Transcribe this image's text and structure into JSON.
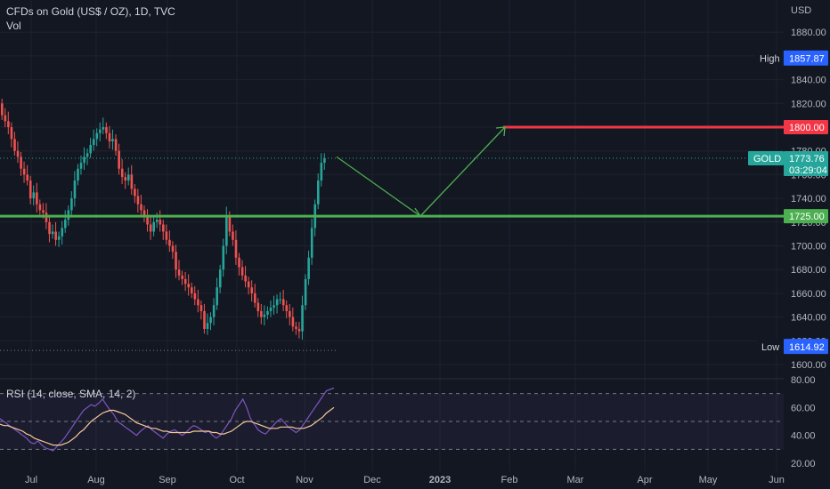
{
  "header": {
    "symbol_line": "CFDs on Gold (US$ / OZ), 1D, TVC",
    "sub_line": "Vol"
  },
  "axis": {
    "currency": "USD",
    "price_ticks": [
      1880,
      1860,
      1840,
      1820,
      1800,
      1780,
      1760,
      1740,
      1720,
      1700,
      1680,
      1660,
      1640,
      1620,
      1600
    ],
    "price_tick_labels": [
      "1880.00",
      "1860.00",
      "1840.00",
      "1820.00",
      "1800.00",
      "1780.00",
      "1760.00",
      "1740.00",
      "1720.00",
      "1700.00",
      "1680.00",
      "1660.00",
      "1640.00",
      "1620.00",
      "1600.00"
    ],
    "time_labels": [
      "Jul",
      "Aug",
      "Sep",
      "Oct",
      "Nov",
      "Dec",
      "2023",
      "Feb",
      "Mar",
      "Apr",
      "May",
      "Jun"
    ],
    "rsi_ticks": [
      80,
      60,
      40,
      20
    ],
    "rsi_tick_labels": [
      "80.00",
      "60.00",
      "40.00",
      "20.00"
    ]
  },
  "badges": {
    "high_label": "High",
    "high_value": "1857.87",
    "red_level": "1800.00",
    "gold_label": "GOLD",
    "gold_price": "1773.76",
    "gold_countdown": "03:29:04",
    "green_level": "1725.00",
    "low_label": "Low",
    "low_value": "1614.92"
  },
  "rsi": {
    "label": "RSI (14, close, SMA, 14, 2)"
  },
  "colors": {
    "background": "#131722",
    "bull": "#26a69a",
    "bear": "#ef5350",
    "resistance": "#f23645",
    "support": "#4caf50",
    "arrow": "#4caf50",
    "rsi_line": "#7e57c2",
    "rsi_ma": "#f7c99b",
    "high_low_badge": "#2962ff"
  },
  "chart_data": {
    "type": "candlestick",
    "x_categories": [
      "Jul",
      "Aug",
      "Sep",
      "Oct",
      "Nov",
      "Dec",
      "2023",
      "Feb",
      "Mar",
      "Apr",
      "May",
      "Jun"
    ],
    "y_range": [
      1600,
      1880
    ],
    "closes": [
      1810,
      1805,
      1800,
      1790,
      1780,
      1775,
      1765,
      1760,
      1755,
      1740,
      1745,
      1735,
      1730,
      1728,
      1720,
      1710,
      1712,
      1705,
      1708,
      1715,
      1722,
      1730,
      1740,
      1755,
      1765,
      1770,
      1775,
      1778,
      1785,
      1790,
      1795,
      1798,
      1800,
      1795,
      1788,
      1790,
      1780,
      1765,
      1758,
      1755,
      1760,
      1748,
      1742,
      1735,
      1730,
      1725,
      1718,
      1712,
      1720,
      1722,
      1718,
      1712,
      1705,
      1700,
      1695,
      1680,
      1675,
      1672,
      1668,
      1665,
      1660,
      1655,
      1650,
      1645,
      1630,
      1635,
      1640,
      1650,
      1665,
      1680,
      1700,
      1725,
      1712,
      1705,
      1690,
      1682,
      1675,
      1670,
      1665,
      1660,
      1652,
      1645,
      1640,
      1642,
      1645,
      1648,
      1650,
      1655,
      1655,
      1650,
      1645,
      1640,
      1632,
      1630,
      1628,
      1650,
      1672,
      1690,
      1715,
      1735,
      1755,
      1770,
      1774
    ],
    "levels": {
      "resistance": 1800.0,
      "support": 1725.0,
      "session_high": 1857.87,
      "session_low": 1614.92
    },
    "last_price": 1773.76,
    "projection_path": [
      [
        1775,
        1725
      ],
      [
        1725,
        1800
      ]
    ],
    "rsi_range": [
      20,
      80
    ],
    "rsi_levels": [
      70,
      50,
      30
    ],
    "rsi_values": [
      52,
      50,
      48,
      46,
      44,
      42,
      40,
      38,
      35,
      34,
      36,
      33,
      31,
      30,
      29,
      32,
      35,
      38,
      42,
      46,
      50,
      54,
      58,
      60,
      62,
      61,
      63,
      66,
      62,
      58,
      55,
      50,
      48,
      46,
      44,
      42,
      40,
      43,
      45,
      47,
      44,
      42,
      40,
      38,
      41,
      43,
      44,
      42,
      40,
      42,
      45,
      47,
      46,
      44,
      42,
      43,
      40,
      38,
      40,
      44,
      48,
      52,
      58,
      62,
      66,
      60,
      52,
      48,
      44,
      42,
      41,
      44,
      47,
      50,
      52,
      49,
      46,
      44,
      42,
      44,
      48,
      52,
      56,
      60,
      64,
      68,
      72,
      73,
      74
    ],
    "rsi_ma_values": [
      48,
      47,
      47,
      46,
      45,
      44,
      43,
      41,
      40,
      38,
      37,
      36,
      35,
      34,
      33,
      33,
      33,
      34,
      35,
      37,
      39,
      42,
      44,
      47,
      50,
      52,
      54,
      56,
      57,
      58,
      58,
      57,
      56,
      55,
      53,
      51,
      49,
      48,
      47,
      46,
      45,
      45,
      44,
      43,
      43,
      42,
      42,
      42,
      42,
      42,
      42,
      43,
      43,
      43,
      43,
      43,
      42,
      42,
      41,
      41,
      42,
      43,
      45,
      47,
      49,
      50,
      50,
      49,
      48,
      47,
      46,
      45,
      45,
      45,
      46,
      46,
      46,
      46,
      45,
      45,
      45,
      46,
      47,
      49,
      51,
      53,
      56,
      58,
      60
    ]
  }
}
